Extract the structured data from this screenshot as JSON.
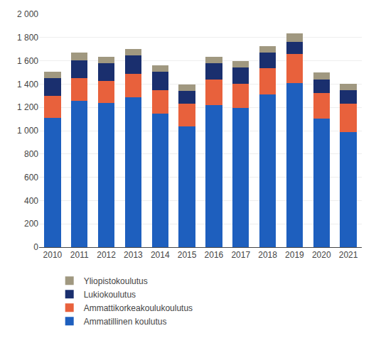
{
  "chart_data": {
    "type": "bar",
    "stacked": true,
    "categories": [
      "2010",
      "2011",
      "2012",
      "2013",
      "2014",
      "2015",
      "2016",
      "2017",
      "2018",
      "2019",
      "2020",
      "2021"
    ],
    "series": [
      {
        "name": "Ammatillinen koulutus",
        "color": "#1e5fbe",
        "values": [
          1110,
          1255,
          1240,
          1285,
          1145,
          1035,
          1220,
          1195,
          1310,
          1410,
          1105,
          990
        ]
      },
      {
        "name": "Ammattikorkeakoulukoulutus",
        "color": "#e8613c",
        "values": [
          190,
          195,
          185,
          205,
          205,
          195,
          220,
          210,
          225,
          250,
          220,
          240
        ]
      },
      {
        "name": "Lukiokoulutus",
        "color": "#1a2f6e",
        "values": [
          150,
          155,
          155,
          155,
          155,
          110,
          140,
          140,
          135,
          100,
          115,
          115
        ]
      },
      {
        "name": "Yliopistokoulutus",
        "color": "#a09880",
        "values": [
          55,
          65,
          55,
          55,
          55,
          55,
          55,
          55,
          55,
          75,
          60,
          60
        ]
      }
    ],
    "ylim": [
      0,
      2000
    ],
    "yticks": [
      0,
      200,
      400,
      600,
      800,
      {
        "value": 1000,
        "label": "1 000"
      },
      {
        "value": 1200,
        "label": "1 200"
      },
      {
        "value": 1400,
        "label": "1 400"
      },
      {
        "value": 1600,
        "label": "1 600"
      },
      {
        "value": 1800,
        "label": "1 800"
      },
      {
        "value": 2000,
        "label": "2 000"
      }
    ],
    "grid": true,
    "legend": "bottom"
  }
}
